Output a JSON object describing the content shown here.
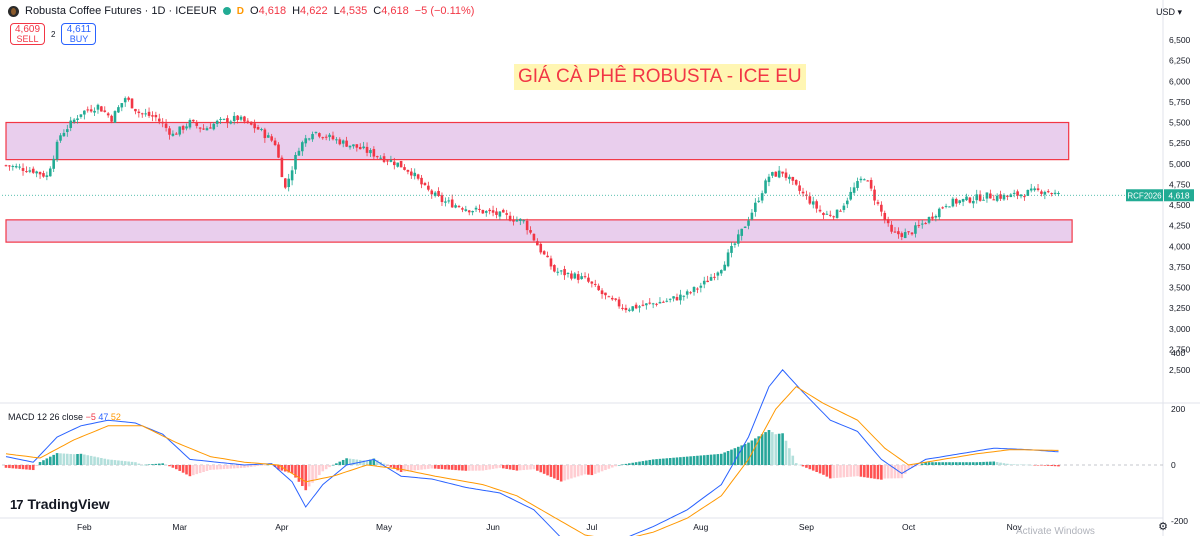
{
  "header": {
    "symbol_title": "Robusta Coffee Futures · 1D · ICEEUR",
    "d_badge": "D",
    "o_label": "O",
    "o_value": "4,618",
    "h_label": "H",
    "h_value": "4,622",
    "l_label": "L",
    "l_value": "4,535",
    "c_label": "C",
    "c_value": "4,618",
    "change": "−5 (−0.11%)"
  },
  "trade": {
    "sell_price": "4,609",
    "sell_label": "SELL",
    "spread": "2",
    "buy_price": "4,611",
    "buy_label": "BUY"
  },
  "currency": "USD",
  "overlay_title": "GIÁ CÀ PHÊ ROBUSTA - ICE EU",
  "macd": {
    "label": "MACD 12 26 close",
    "hist": "−5",
    "macd": "47",
    "signal": "52"
  },
  "branding": {
    "logo_mark": "17",
    "logo_text": "TradingView"
  },
  "watermark": "Activate Windows",
  "colors": {
    "up": "#22ab94",
    "down": "#f23645",
    "zone_fill": "#e1bee7",
    "zone_stroke": "#f23645",
    "macd_line": "#2962ff",
    "signal_line": "#ff9800"
  },
  "chart_data": [
    {
      "type": "candlestick",
      "series_name": "RCF2026",
      "last_price": "4,618",
      "y_ticks": [
        2500,
        2750,
        3000,
        3250,
        3500,
        3750,
        4000,
        4250,
        4500,
        4750,
        5000,
        5250,
        5500,
        5750,
        6000,
        6250,
        6500
      ],
      "ylim": [
        2400,
        6600
      ],
      "x_month_labels": [
        "Feb",
        "Mar",
        "Apr",
        "May",
        "Jun",
        "Jul",
        "Aug",
        "Sep",
        "Oct",
        "Nov"
      ],
      "x_month_positions_days": [
        23,
        51,
        81,
        111,
        143,
        172,
        204,
        235,
        265,
        296
      ],
      "total_days": 330,
      "zones": [
        {
          "low": 5050,
          "high": 5500,
          "start_day": 0,
          "end_day": 312
        },
        {
          "low": 4050,
          "high": 4320,
          "start_day": 0,
          "end_day": 313
        }
      ],
      "close_path_anchors": [
        [
          0,
          4980
        ],
        [
          8,
          4920
        ],
        [
          12,
          4850
        ],
        [
          16,
          5350
        ],
        [
          22,
          5620
        ],
        [
          27,
          5700
        ],
        [
          31,
          5550
        ],
        [
          35,
          5800
        ],
        [
          39,
          5620
        ],
        [
          44,
          5560
        ],
        [
          49,
          5350
        ],
        [
          54,
          5500
        ],
        [
          58,
          5420
        ],
        [
          62,
          5500
        ],
        [
          68,
          5550
        ],
        [
          74,
          5420
        ],
        [
          79,
          5250
        ],
        [
          82,
          4700
        ],
        [
          86,
          5200
        ],
        [
          90,
          5400
        ],
        [
          96,
          5300
        ],
        [
          103,
          5200
        ],
        [
          109,
          5100
        ],
        [
          115,
          5000
        ],
        [
          119,
          4900
        ],
        [
          123,
          4700
        ],
        [
          128,
          4550
        ],
        [
          136,
          4450
        ],
        [
          143,
          4400
        ],
        [
          152,
          4300
        ],
        [
          157,
          3950
        ],
        [
          161,
          3700
        ],
        [
          166,
          3650
        ],
        [
          170,
          3600
        ],
        [
          177,
          3350
        ],
        [
          182,
          3250
        ],
        [
          187,
          3280
        ],
        [
          195,
          3350
        ],
        [
          200,
          3420
        ],
        [
          205,
          3550
        ],
        [
          210,
          3750
        ],
        [
          215,
          4100
        ],
        [
          220,
          4500
        ],
        [
          224,
          4850
        ],
        [
          228,
          4900
        ],
        [
          231,
          4750
        ],
        [
          236,
          4550
        ],
        [
          240,
          4380
        ],
        [
          244,
          4400
        ],
        [
          249,
          4700
        ],
        [
          252,
          4850
        ],
        [
          256,
          4500
        ],
        [
          260,
          4150
        ],
        [
          265,
          4150
        ],
        [
          270,
          4300
        ],
        [
          276,
          4520
        ],
        [
          282,
          4560
        ],
        [
          288,
          4610
        ],
        [
          294,
          4600
        ],
        [
          300,
          4650
        ],
        [
          305,
          4680
        ],
        [
          309,
          4618
        ]
      ],
      "macd_ticks": [
        -200,
        0,
        200,
        400
      ],
      "macd_ylim": [
        -300,
        450
      ],
      "macd_anchors": [
        [
          0,
          30
        ],
        [
          8,
          10
        ],
        [
          15,
          100
        ],
        [
          22,
          140
        ],
        [
          30,
          160
        ],
        [
          38,
          150
        ],
        [
          46,
          110
        ],
        [
          54,
          20
        ],
        [
          62,
          10
        ],
        [
          70,
          0
        ],
        [
          78,
          5
        ],
        [
          84,
          -60
        ],
        [
          88,
          -150
        ],
        [
          93,
          -70
        ],
        [
          100,
          0
        ],
        [
          108,
          20
        ],
        [
          116,
          -40
        ],
        [
          125,
          -50
        ],
        [
          135,
          -80
        ],
        [
          145,
          -100
        ],
        [
          155,
          -160
        ],
        [
          163,
          -260
        ],
        [
          172,
          -290
        ],
        [
          180,
          -270
        ],
        [
          190,
          -220
        ],
        [
          200,
          -160
        ],
        [
          210,
          -70
        ],
        [
          218,
          100
        ],
        [
          224,
          280
        ],
        [
          228,
          340
        ],
        [
          234,
          260
        ],
        [
          242,
          160
        ],
        [
          250,
          120
        ],
        [
          257,
          20
        ],
        [
          263,
          -30
        ],
        [
          270,
          20
        ],
        [
          280,
          40
        ],
        [
          290,
          60
        ],
        [
          300,
          55
        ],
        [
          309,
          47
        ]
      ],
      "signal_anchors": [
        [
          0,
          40
        ],
        [
          10,
          25
        ],
        [
          20,
          90
        ],
        [
          30,
          140
        ],
        [
          40,
          140
        ],
        [
          50,
          80
        ],
        [
          60,
          30
        ],
        [
          70,
          10
        ],
        [
          80,
          0
        ],
        [
          88,
          -60
        ],
        [
          96,
          -40
        ],
        [
          106,
          0
        ],
        [
          116,
          -15
        ],
        [
          126,
          -40
        ],
        [
          140,
          -70
        ],
        [
          150,
          -110
        ],
        [
          160,
          -180
        ],
        [
          170,
          -250
        ],
        [
          180,
          -270
        ],
        [
          190,
          -240
        ],
        [
          200,
          -190
        ],
        [
          210,
          -110
        ],
        [
          218,
          20
        ],
        [
          226,
          200
        ],
        [
          232,
          280
        ],
        [
          240,
          220
        ],
        [
          250,
          160
        ],
        [
          258,
          60
        ],
        [
          265,
          0
        ],
        [
          275,
          20
        ],
        [
          285,
          40
        ],
        [
          295,
          55
        ],
        [
          309,
          52
        ]
      ]
    }
  ]
}
